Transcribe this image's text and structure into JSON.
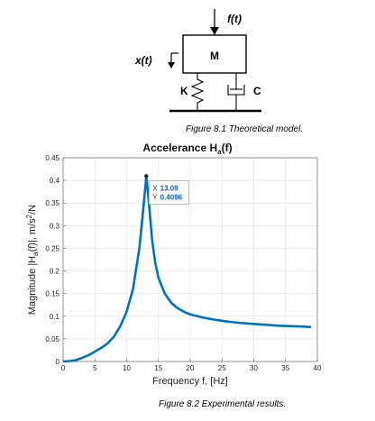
{
  "model": {
    "force_label": "f(t)",
    "displacement_label": "x(t)",
    "mass_label": "M",
    "spring_label": "K",
    "damper_label": "C"
  },
  "captions": {
    "figure_1": "Figure 8.1 Theoretical model.",
    "figure_2": "Figure 8.2 Experimental results."
  },
  "chart_data": {
    "type": "line",
    "title": "Accelerance H",
    "title_sub": "a",
    "title_tail": "(f)",
    "xlabel": "Frequency f, [Hz]",
    "ylabel": "Magnitude |H",
    "ylabel_sub": "a",
    "ylabel_tail": "(f)|, m/s",
    "ylabel_sup": "2",
    "ylabel_end": "/N",
    "xlim": [
      0,
      40
    ],
    "ylim": [
      0,
      0.45
    ],
    "xticks": [
      "0",
      "5",
      "10",
      "15",
      "20",
      "25",
      "30",
      "35",
      "40"
    ],
    "yticks": [
      "0",
      "0.05",
      "0.1",
      "0.15",
      "0.2",
      "0.25",
      "0.3",
      "0.35",
      "0.4",
      "0.45"
    ],
    "grid": true,
    "line_color": "#0072BD",
    "series": [
      {
        "x": [
          0,
          1,
          2,
          3,
          4,
          5,
          6,
          7,
          8,
          9,
          10,
          11,
          12,
          12.5,
          13,
          13.09,
          13.5,
          14,
          14.5,
          15,
          16,
          17,
          18,
          19,
          20,
          22,
          24,
          26,
          28,
          30,
          32,
          34,
          36,
          38,
          39
        ],
        "y": [
          0.0,
          0.001,
          0.003,
          0.008,
          0.014,
          0.022,
          0.03,
          0.04,
          0.055,
          0.078,
          0.11,
          0.16,
          0.25,
          0.32,
          0.395,
          0.4096,
          0.35,
          0.27,
          0.218,
          0.185,
          0.15,
          0.13,
          0.118,
          0.11,
          0.104,
          0.097,
          0.092,
          0.088,
          0.085,
          0.083,
          0.081,
          0.079,
          0.078,
          0.077,
          0.076
        ]
      }
    ],
    "datatip": {
      "x_label": "X",
      "x_value": "13.09",
      "y_label": "Y",
      "y_value": "0.4096",
      "x": 13.09,
      "y": 0.4096
    }
  }
}
